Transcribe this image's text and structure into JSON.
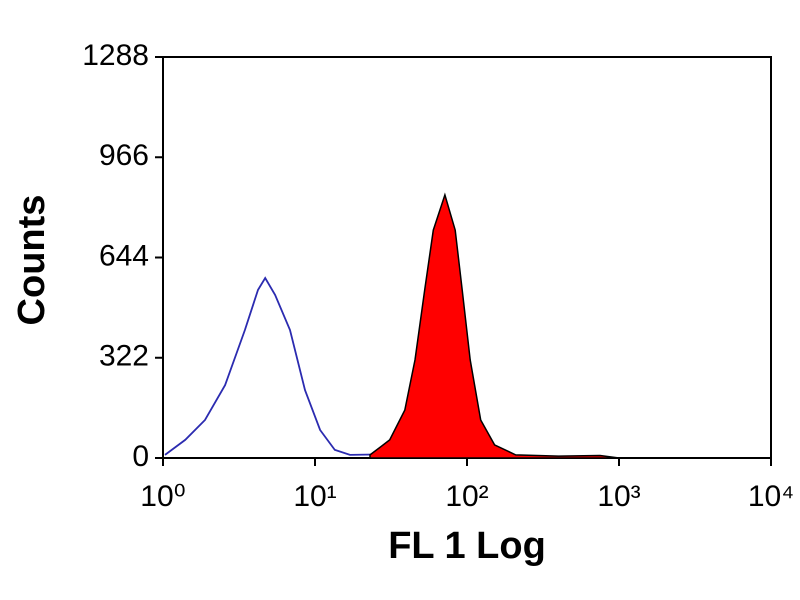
{
  "chart_data": {
    "type": "histogram-overlay",
    "xlabel": "FL 1 Log",
    "ylabel": "Counts",
    "xscale": "log",
    "xlim": [
      1,
      10000
    ],
    "xticks": [
      {
        "value": 1,
        "label": "10⁰"
      },
      {
        "value": 10,
        "label": "10¹"
      },
      {
        "value": 100,
        "label": "10²"
      },
      {
        "value": 1000,
        "label": "10³"
      },
      {
        "value": 10000,
        "label": "10⁴"
      }
    ],
    "ylim": [
      0,
      1288
    ],
    "yticks": [
      0,
      322,
      644,
      966,
      1288
    ],
    "grid": false,
    "series": [
      {
        "color": "#2b2bb0",
        "style": "outline",
        "x": [
          1.03,
          1.4,
          1.89,
          2.56,
          3.46,
          4.22,
          4.7,
          5.46,
          6.85,
          8.6,
          10.8,
          13.5,
          17,
          30,
          49,
          66,
          105
        ],
        "values": [
          10,
          58,
          122,
          234,
          411,
          540,
          578,
          524,
          411,
          218,
          90,
          26,
          10,
          12,
          40,
          10,
          3
        ]
      },
      {
        "color": "#ff0000",
        "style": "filled",
        "x": [
          23,
          31,
          39,
          45.5,
          52.7,
          60,
          71.6,
          83.6,
          93,
          105,
          123,
          152,
          209,
          400,
          750,
          1000
        ],
        "values": [
          10,
          58,
          154,
          315,
          540,
          732,
          845,
          732,
          540,
          315,
          122,
          42,
          10,
          6,
          8,
          0
        ]
      }
    ]
  }
}
